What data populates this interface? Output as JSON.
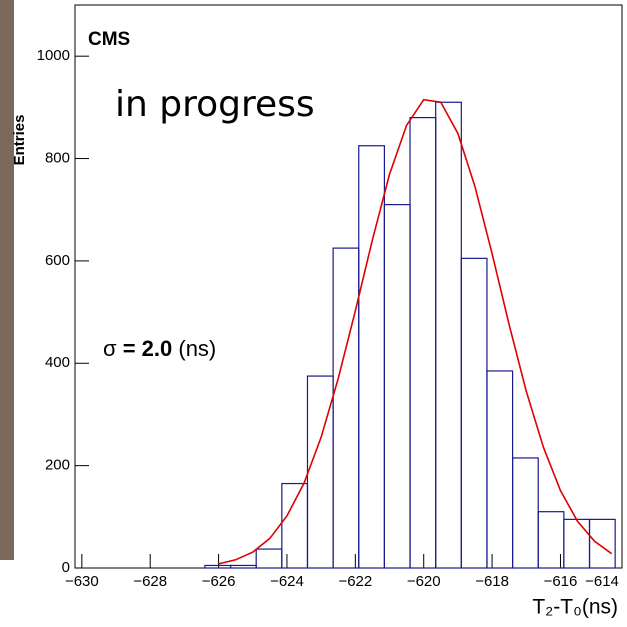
{
  "chart_data": {
    "type": "histogram",
    "y_label": "Entries",
    "x_label": "T₂-T₀(ns)",
    "annotations": {
      "experiment": "CMS",
      "status": "in progress",
      "sigma_symbol": "σ",
      "sigma_value": "= 2.0",
      "sigma_unit": "(ns)"
    },
    "bins": [
      -626.4,
      -625.65,
      -624.9,
      -624.15,
      -623.4,
      -622.65,
      -621.9,
      -621.15,
      -620.4,
      -619.65,
      -618.9,
      -618.15,
      -617.4,
      -616.65,
      -615.9,
      -615.15,
      -614.4
    ],
    "counts": [
      5,
      5,
      37,
      165,
      375,
      625,
      825,
      710,
      880,
      910,
      605,
      385,
      215,
      110,
      95,
      95
    ],
    "color": "#1a1a8c",
    "fit": {
      "color": "#e00000",
      "x": [
        -626,
        -625.5,
        -625,
        -624.5,
        -624,
        -623.5,
        -623,
        -622.5,
        -622,
        -621.5,
        -621,
        -620.5,
        -620,
        -619.5,
        -619,
        -618.5,
        -618,
        -617.5,
        -617,
        -616.5,
        -616,
        -615.5,
        -615,
        -614.5
      ],
      "values": [
        8,
        16,
        31,
        58,
        102,
        166,
        256,
        370,
        502,
        641,
        769,
        865,
        915,
        910,
        849,
        745,
        614,
        475,
        345,
        236,
        151,
        91,
        52,
        28
      ]
    },
    "xlim": [
      -630.2,
      -614.2
    ],
    "xticks": [
      {
        "value": -630,
        "label": "−630"
      },
      {
        "value": -628,
        "label": "−628"
      },
      {
        "value": -626,
        "label": "−626"
      },
      {
        "value": -624,
        "label": "−624"
      },
      {
        "value": -622,
        "label": "−622"
      },
      {
        "value": -620,
        "label": "−620"
      },
      {
        "value": -618,
        "label": "−618"
      },
      {
        "value": -616,
        "label": "−616"
      },
      {
        "value": -614,
        "label": "−614"
      }
    ],
    "ylim": [
      0,
      1100
    ],
    "yticks": [
      0,
      200,
      400,
      600,
      800,
      1000
    ]
  }
}
